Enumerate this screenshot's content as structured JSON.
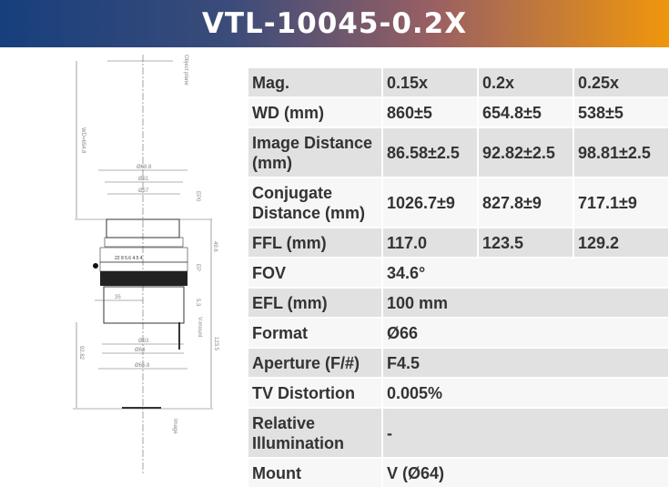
{
  "header": {
    "title": "VTL-10045-0.2X",
    "gradient_start": "#173f7c",
    "gradient_end": "#f0960c"
  },
  "drawing": {
    "labels": {
      "object_plane": "Object plane",
      "wd": "WD=654.8",
      "d688": "Ø68.8",
      "d61": "Ø61",
      "d57": "Ø57",
      "ep0": "EP0",
      "l496": "49.6",
      "ep": "EP",
      "d35": "35",
      "l53": "5.3",
      "vmount": "V-mount",
      "d63": "Ø63",
      "d64": "Ø64",
      "d658": "Ø65.8",
      "l1235": "123.5",
      "l9282": "92.82",
      "image": "Image",
      "scale": "22  8  5.6  4.5  4"
    }
  },
  "table": {
    "rows": [
      {
        "label": "Mag.",
        "values": [
          "0.15x",
          "0.2x",
          "0.25x"
        ]
      },
      {
        "label": "WD (mm)",
        "values": [
          "860±5",
          "654.8±5",
          "538±5"
        ]
      },
      {
        "label": "Image Distance (mm)",
        "values": [
          "86.58±2.5",
          "92.82±2.5",
          "98.81±2.5"
        ]
      },
      {
        "label": "Conjugate Distance (mm)",
        "values": [
          "1026.7±9",
          "827.8±9",
          "717.1±9"
        ]
      },
      {
        "label": "FFL (mm)",
        "values": [
          "117.0",
          "123.5",
          "129.2"
        ]
      },
      {
        "label": "FOV",
        "value": "34.6°"
      },
      {
        "label": "EFL (mm)",
        "value": "100 mm"
      },
      {
        "label": "Format",
        "value": "Ø66"
      },
      {
        "label": "Aperture (F/#)",
        "value": "F4.5"
      },
      {
        "label": "TV Distortion",
        "value": "0.005%"
      },
      {
        "label": "Relative Illumination",
        "value": "-"
      },
      {
        "label": "Mount",
        "value": "V (Ø64)"
      }
    ]
  }
}
